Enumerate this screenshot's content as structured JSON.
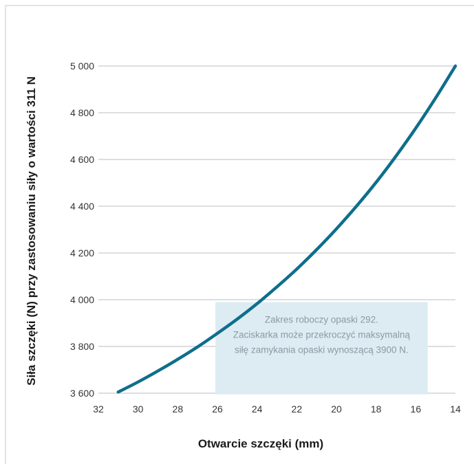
{
  "chart_data": {
    "type": "line",
    "xlabel": "Otwarcie szczęki (mm)",
    "ylabel": "Siła szczęki (N) przy zastosowaniu siły o wartości 311 N",
    "x_reversed": true,
    "xlim": [
      32,
      14
    ],
    "ylim": [
      3600,
      5000
    ],
    "grid": true,
    "x_ticks": [
      32,
      30,
      28,
      26,
      24,
      22,
      20,
      18,
      16,
      14
    ],
    "x_tick_labels": [
      "32",
      "30",
      "28",
      "26",
      "24",
      "22",
      "20",
      "18",
      "16",
      "14"
    ],
    "y_ticks": [
      3600,
      3800,
      4000,
      4200,
      4400,
      4600,
      4800,
      5000
    ],
    "y_tick_labels": [
      "3 600",
      "3 800",
      "4 000",
      "4 200",
      "4 400",
      "4 600",
      "4 800",
      "5 000"
    ],
    "series": [
      {
        "color": "#0f6e8c",
        "x": [
          31,
          30,
          29,
          28,
          27,
          26,
          25,
          24,
          23,
          22,
          21,
          20,
          19,
          18,
          17,
          16,
          15,
          14
        ],
        "y": [
          3605,
          3648,
          3695,
          3745,
          3798,
          3856,
          3917,
          3983,
          4055,
          4131,
          4214,
          4303,
          4399,
          4502,
          4614,
          4734,
          4863,
          5000
        ]
      }
    ],
    "annotation": {
      "lines": [
        "Zakres roboczy opaski 292.",
        "Zaciskarka może przekroczyć maksymalną",
        "siłę zamykania opaski wynoszącą 3900 N."
      ],
      "x_range": [
        26.1,
        15.4
      ],
      "y_range": [
        3595,
        3990
      ],
      "fill": "#dcecf2",
      "text_color": "#8a9aa6"
    }
  },
  "colors": {
    "frame_border": "#c8c8c8",
    "grid": "#bcbcbc",
    "line": "#0f6e8c"
  }
}
